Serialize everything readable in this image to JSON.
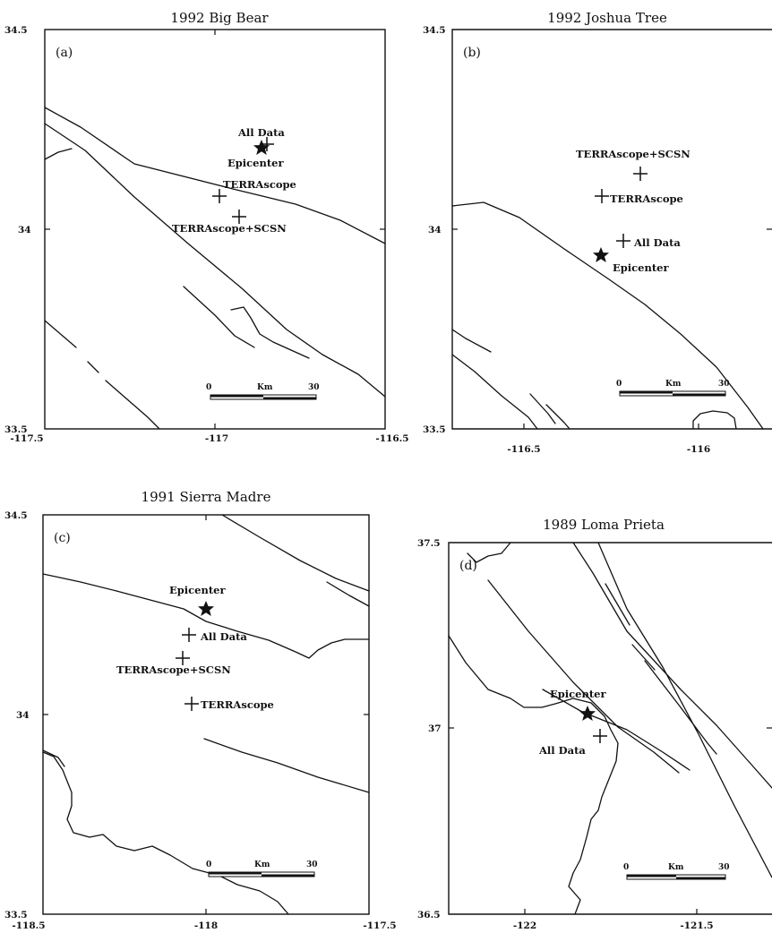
{
  "panels": [
    {
      "id": "a",
      "title": "1992 Big Bear",
      "panel_label": "(a)",
      "lat_ticks": [
        "34.5",
        "34",
        "33.5"
      ],
      "lon_ticks": [
        "-117.5",
        "-117",
        "-116.5"
      ],
      "lat_range": [
        33.5,
        34.5
      ],
      "lon_range": [
        -117.5,
        -116.5
      ],
      "epicenter": {
        "label": "Epicenter",
        "lon": -116.83,
        "lat": 34.2
      },
      "locations": [
        {
          "label": "All Data",
          "lon": -116.82,
          "lat": 34.21
        },
        {
          "label": "TERRAscope",
          "lon": -116.97,
          "lat": 34.08
        },
        {
          "label": "TERRAscope+SCSN",
          "lon": -116.94,
          "lat": 34.03
        }
      ],
      "scale_bar": {
        "start": "0",
        "unit": "Km",
        "end": "30"
      }
    },
    {
      "id": "b",
      "title": "1992 Joshua Tree",
      "panel_label": "(b)",
      "lat_ticks": [
        "34.5",
        "34",
        "33.5"
      ],
      "lon_ticks": [
        "-116.5",
        "-116"
      ],
      "lat_range": [
        33.5,
        34.5
      ],
      "lon_range": [
        -116.85,
        -115.85
      ],
      "epicenter": {
        "label": "Epicenter",
        "lon": -116.33,
        "lat": 33.94
      },
      "locations": [
        {
          "label": "All Data",
          "lon": -116.28,
          "lat": 33.97
        },
        {
          "label": "TERRAscope",
          "lon": -116.33,
          "lat": 34.08
        },
        {
          "label": "TERRAscope+SCSN",
          "lon": -116.24,
          "lat": 34.13
        }
      ],
      "scale_bar": {
        "start": "0",
        "unit": "Km",
        "end": "30"
      }
    },
    {
      "id": "c",
      "title": "1991 Sierra Madre",
      "panel_label": "(c)",
      "lat_ticks": [
        "34.5",
        "34",
        "33.5"
      ],
      "lon_ticks": [
        "-118.5",
        "-118",
        "-117.5"
      ],
      "lat_range": [
        33.5,
        34.5
      ],
      "lon_range": [
        -118.5,
        -117.5
      ],
      "epicenter": {
        "label": "Epicenter",
        "lon": -117.93,
        "lat": 34.26
      },
      "locations": [
        {
          "label": "All Data",
          "lon": -118.02,
          "lat": 34.19
        },
        {
          "label": "TERRAscope+SCSN",
          "lon": -118.04,
          "lat": 34.13
        },
        {
          "label": "TERRAscope",
          "lon": -118.01,
          "lat": 34.02
        }
      ],
      "scale_bar": {
        "start": "0",
        "unit": "Km",
        "end": "30"
      }
    },
    {
      "id": "d",
      "title": "1989 Loma Prieta",
      "panel_label": "(d)",
      "lat_ticks": [
        "37.5",
        "37",
        "36.5"
      ],
      "lon_ticks": [
        "-122",
        "-121.5"
      ],
      "lat_range": [
        36.5,
        37.5
      ],
      "lon_range": [
        -122.25,
        -121.3
      ],
      "epicenter": {
        "label": "Epicenter",
        "lon": -121.88,
        "lat": 37.04
      },
      "locations": [
        {
          "label": "All Data",
          "lon": -121.85,
          "lat": 36.98
        }
      ],
      "scale_bar": {
        "start": "0",
        "unit": "Km",
        "end": "30"
      }
    }
  ]
}
